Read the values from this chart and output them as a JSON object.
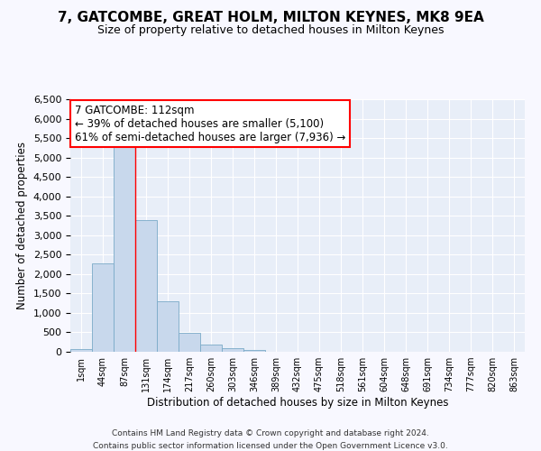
{
  "title1": "7, GATCOMBE, GREAT HOLM, MILTON KEYNES, MK8 9EA",
  "title2": "Size of property relative to detached houses in Milton Keynes",
  "xlabel": "Distribution of detached houses by size in Milton Keynes",
  "ylabel": "Number of detached properties",
  "bar_labels": [
    "1sqm",
    "44sqm",
    "87sqm",
    "131sqm",
    "174sqm",
    "217sqm",
    "260sqm",
    "303sqm",
    "346sqm",
    "389sqm",
    "432sqm",
    "475sqm",
    "518sqm",
    "561sqm",
    "604sqm",
    "648sqm",
    "691sqm",
    "734sqm",
    "777sqm",
    "820sqm",
    "863sqm"
  ],
  "bar_values": [
    75,
    2270,
    5450,
    3380,
    1310,
    480,
    195,
    100,
    55,
    0,
    0,
    0,
    0,
    0,
    0,
    0,
    0,
    0,
    0,
    0,
    0
  ],
  "bar_color": "#c8d8ec",
  "bar_edge_color": "#7aaac8",
  "vline_x_idx": 2.5,
  "vline_color": "red",
  "annotation_title": "7 GATCOMBE: 112sqm",
  "annotation_line1": "← 39% of detached houses are smaller (5,100)",
  "annotation_line2": "61% of semi-detached houses are larger (7,936) →",
  "annotation_box_color": "white",
  "annotation_box_edge": "red",
  "ylim": [
    0,
    6500
  ],
  "yticks": [
    0,
    500,
    1000,
    1500,
    2000,
    2500,
    3000,
    3500,
    4000,
    4500,
    5000,
    5500,
    6000,
    6500
  ],
  "footer1": "Contains HM Land Registry data © Crown copyright and database right 2024.",
  "footer2": "Contains public sector information licensed under the Open Government Licence v3.0.",
  "bg_color": "#f8f8ff",
  "plot_bg_color": "#e8eef8",
  "grid_color": "#ffffff",
  "title1_fontsize": 11,
  "title2_fontsize": 9
}
